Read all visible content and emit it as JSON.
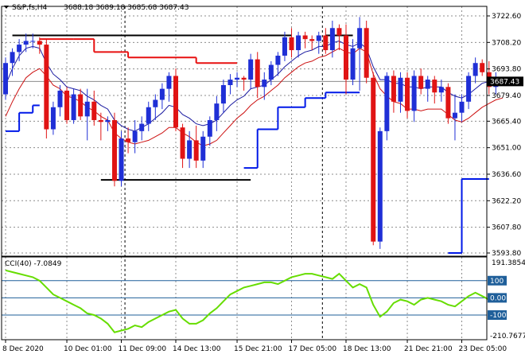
{
  "header": {
    "symbol": "S&P,fs,H4",
    "ohlc": "3688.18 3689.18 3685.68 3687.43"
  },
  "indicator": {
    "label": "CCI(40) -7.0849",
    "levels": [
      "100",
      "0.00",
      "-100"
    ],
    "top_value": "191.3854",
    "bottom_value": "-210.7677"
  },
  "current_price_label": "3687.43",
  "colors": {
    "up_body": "#1f2fd6",
    "down_body": "#e01414",
    "level_line": "#000000",
    "support_line": "#0018e8",
    "resistance_line": "#e81010",
    "cci": "#66dd00",
    "grid": "#8c8c8c",
    "level_fill": "#1f5f9a"
  },
  "chart_data": [
    {
      "type": "candlestick",
      "title": "S&P,fs,H4",
      "x_tick_labels": [
        "8 Dec 2020",
        "10 Dec 01:00",
        "11 Dec 09:00",
        "14 Dec 13:00",
        "15 Dec 21:00",
        "17 Dec 05:00",
        "18 Dec 13:00",
        "21 Dec 21:00",
        "23 Dec 05:00"
      ],
      "y_tick_labels": [
        "3722.60",
        "3708.20",
        "3693.80",
        "3679.40",
        "3665.40",
        "3651.00",
        "3636.60",
        "3622.20",
        "3607.80",
        "3593.80"
      ],
      "ylim": [
        3593.8,
        3722.6
      ],
      "candles": [
        [
          3680,
          3700,
          3677,
          3697
        ],
        [
          3697,
          3705,
          3690,
          3703
        ],
        [
          3703,
          3710,
          3698,
          3707
        ],
        [
          3707,
          3713,
          3703,
          3709
        ],
        [
          3709,
          3713,
          3705,
          3709
        ],
        [
          3709,
          3711,
          3702,
          3707
        ],
        [
          3707,
          3710,
          3656,
          3661
        ],
        [
          3661,
          3676,
          3658,
          3673
        ],
        [
          3673,
          3685,
          3668,
          3682
        ],
        [
          3682,
          3684,
          3664,
          3666
        ],
        [
          3666,
          3683,
          3664,
          3680
        ],
        [
          3680,
          3683,
          3666,
          3668
        ],
        [
          3668,
          3683,
          3655,
          3676
        ],
        [
          3676,
          3682,
          3663,
          3666
        ],
        [
          3666,
          3670,
          3655,
          3665
        ],
        [
          3665,
          3668,
          3660,
          3666
        ],
        [
          3666,
          3670,
          3630,
          3633
        ],
        [
          3633,
          3660,
          3630,
          3656
        ],
        [
          3656,
          3662,
          3648,
          3654
        ],
        [
          3654,
          3666,
          3648,
          3660
        ],
        [
          3660,
          3668,
          3655,
          3664
        ],
        [
          3664,
          3676,
          3660,
          3673
        ],
        [
          3673,
          3680,
          3666,
          3677
        ],
        [
          3677,
          3686,
          3672,
          3683
        ],
        [
          3683,
          3692,
          3676,
          3690
        ],
        [
          3690,
          3694,
          3660,
          3662
        ],
        [
          3662,
          3664,
          3640,
          3645
        ],
        [
          3645,
          3660,
          3640,
          3655
        ],
        [
          3655,
          3663,
          3640,
          3644
        ],
        [
          3644,
          3660,
          3640,
          3657
        ],
        [
          3657,
          3668,
          3652,
          3666
        ],
        [
          3666,
          3679,
          3660,
          3675
        ],
        [
          3675,
          3688,
          3670,
          3685
        ],
        [
          3685,
          3691,
          3680,
          3688
        ],
        [
          3688,
          3692,
          3684,
          3689
        ],
        [
          3689,
          3690,
          3682,
          3688
        ],
        [
          3688,
          3702,
          3683,
          3699
        ],
        [
          3699,
          3703,
          3678,
          3684
        ],
        [
          3684,
          3692,
          3677,
          3688
        ],
        [
          3688,
          3698,
          3685,
          3696
        ],
        [
          3696,
          3703,
          3690,
          3701
        ],
        [
          3701,
          3714,
          3698,
          3711
        ],
        [
          3711,
          3716,
          3700,
          3704
        ],
        [
          3704,
          3714,
          3700,
          3712
        ],
        [
          3712,
          3714,
          3705,
          3710
        ],
        [
          3710,
          3712,
          3704,
          3709
        ],
        [
          3709,
          3714,
          3702,
          3712
        ],
        [
          3712,
          3716,
          3702,
          3704
        ],
        [
          3704,
          3720,
          3700,
          3716
        ],
        [
          3716,
          3718,
          3704,
          3712
        ],
        [
          3712,
          3718,
          3680,
          3688
        ],
        [
          3688,
          3710,
          3685,
          3705
        ],
        [
          3705,
          3722,
          3682,
          3716
        ],
        [
          3716,
          3720,
          3686,
          3689
        ],
        [
          3689,
          3692,
          3598,
          3600
        ],
        [
          3600,
          3662,
          3596,
          3660
        ],
        [
          3660,
          3692,
          3655,
          3690
        ],
        [
          3690,
          3693,
          3670,
          3676
        ],
        [
          3676,
          3692,
          3670,
          3689
        ],
        [
          3689,
          3692,
          3667,
          3671
        ],
        [
          3671,
          3693,
          3665,
          3690
        ],
        [
          3690,
          3694,
          3680,
          3683
        ],
        [
          3683,
          3690,
          3676,
          3688
        ],
        [
          3688,
          3690,
          3675,
          3681
        ],
        [
          3681,
          3688,
          3676,
          3684
        ],
        [
          3684,
          3686,
          3664,
          3667
        ],
        [
          3667,
          3680,
          3655,
          3670
        ],
        [
          3670,
          3680,
          3665,
          3676
        ],
        [
          3676,
          3692,
          3672,
          3690
        ],
        [
          3690,
          3700,
          3686,
          3697
        ],
        [
          3697,
          3699,
          3690,
          3692
        ],
        [
          3692,
          3698,
          3680,
          3684
        ],
        [
          3684,
          3692,
          3680,
          3688
        ],
        [
          3688,
          3689,
          3685,
          3687
        ]
      ],
      "ma_blue": [
        3685,
        3694,
        3701,
        3705,
        3706,
        3705,
        3697,
        3691,
        3688,
        3684,
        3683,
        3682,
        3679,
        3677,
        3674,
        3672,
        3666,
        3663,
        3661,
        3660,
        3662,
        3664,
        3667,
        3670,
        3674,
        3673,
        3669,
        3667,
        3664,
        3663,
        3664,
        3666,
        3670,
        3674,
        3677,
        3679,
        3683,
        3684,
        3685,
        3688,
        3691,
        3695,
        3698,
        3701,
        3703,
        3704,
        3706,
        3706,
        3708,
        3709,
        3707,
        3706,
        3708,
        3705,
        3695,
        3688,
        3688,
        3686,
        3686,
        3684,
        3684,
        3683,
        3684,
        3684,
        3684,
        3681,
        3679,
        3678,
        3680,
        3683,
        3686,
        3687,
        3688,
        3689
      ],
      "ma_red": [
        3668,
        3676,
        3683,
        3689,
        3692,
        3694,
        3690,
        3685,
        3683,
        3679,
        3678,
        3676,
        3673,
        3671,
        3668,
        3666,
        3659,
        3656,
        3654,
        3653,
        3654,
        3655,
        3657,
        3659,
        3662,
        3662,
        3659,
        3657,
        3654,
        3652,
        3653,
        3655,
        3659,
        3663,
        3667,
        3670,
        3674,
        3677,
        3679,
        3682,
        3685,
        3689,
        3692,
        3695,
        3697,
        3698,
        3700,
        3701,
        3703,
        3705,
        3703,
        3702,
        3705,
        3703,
        3691,
        3683,
        3679,
        3676,
        3675,
        3672,
        3672,
        3671,
        3672,
        3672,
        3672,
        3669,
        3666,
        3665,
        3667,
        3670,
        3673,
        3675,
        3677,
        3678
      ],
      "horizontal_levels": [
        {
          "from": 1,
          "to": 42,
          "value": 3712.0
        },
        {
          "from": 14,
          "to": 36,
          "value": 3633.5
        },
        {
          "from": 47,
          "to": 51,
          "value": 3712.0
        }
      ],
      "resistance_steps": [
        {
          "from": 5,
          "to": 10,
          "value": 3710.0
        },
        {
          "from": 10,
          "to": 13,
          "value": 3710.0
        },
        {
          "from": 13,
          "to": 18,
          "value": 3703.0
        },
        {
          "from": 18,
          "to": 28,
          "value": 3700.0
        },
        {
          "from": 28,
          "to": 34,
          "value": 3697.0
        }
      ],
      "support_steps": [
        {
          "from": 0,
          "to": 2,
          "value": 3660.0
        },
        {
          "from": 2,
          "to": 4,
          "value": 3670.0
        },
        {
          "from": 4,
          "to": 5,
          "value": 3674.0
        },
        {
          "from": 35,
          "to": 37,
          "value": 3640.0
        },
        {
          "from": 37,
          "to": 40,
          "value": 3661.0
        },
        {
          "from": 40,
          "to": 44,
          "value": 3673.0
        },
        {
          "from": 44,
          "to": 47,
          "value": 3678.0
        },
        {
          "from": 47,
          "to": 52,
          "value": 3681.0
        },
        {
          "from": 65,
          "to": 67,
          "value": 3593.8
        },
        {
          "from": 67,
          "to": 71,
          "value": 3634.0
        }
      ]
    },
    {
      "type": "line",
      "title": "CCI(40) -7.0849",
      "y_tick_labels": [
        "191.3854",
        "100",
        "0.00",
        "-100",
        "-210.7677"
      ],
      "ylim": [
        -210.7677,
        191.3854
      ],
      "levels": [
        100,
        0,
        -100
      ],
      "series": [
        {
          "values": [
            160,
            150,
            140,
            130,
            120,
            100,
            60,
            20,
            0,
            -20,
            -40,
            -60,
            -90,
            -100,
            -120,
            -150,
            -200,
            -190,
            -180,
            -160,
            -170,
            -140,
            -120,
            -100,
            -80,
            -70,
            -120,
            -150,
            -150,
            -130,
            -90,
            -60,
            -20,
            20,
            40,
            60,
            70,
            80,
            90,
            90,
            80,
            100,
            120,
            130,
            140,
            140,
            130,
            120,
            110,
            140,
            100,
            60,
            80,
            60,
            -40,
            -110,
            -80,
            -30,
            -10,
            -20,
            -40,
            -10,
            0,
            -10,
            -20,
            -40,
            -50,
            -20,
            10,
            30,
            10,
            -10,
            -10,
            -7
          ]
        }
      ]
    }
  ]
}
